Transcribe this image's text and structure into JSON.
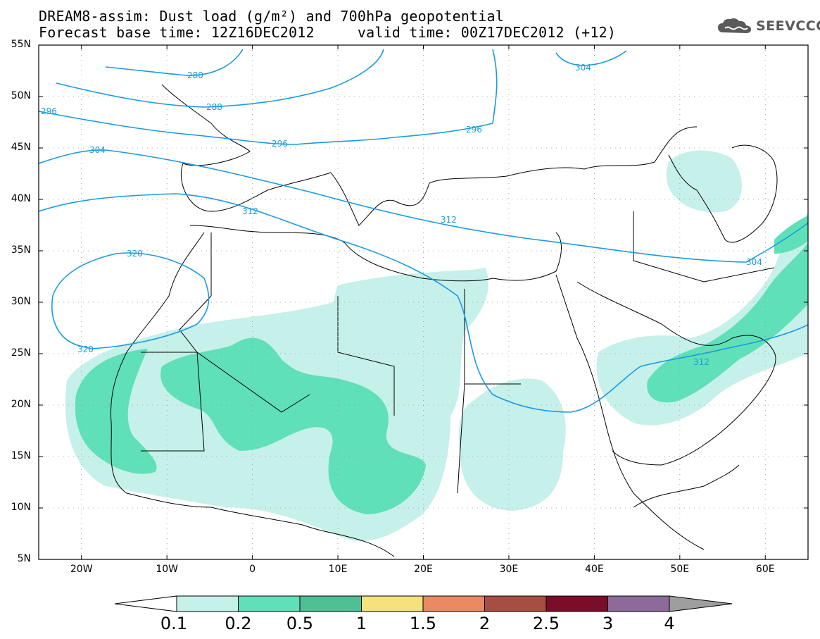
{
  "title": {
    "line1": "DREAM8-assim: Dust load (g/m²) and 700hPa geopotential",
    "line2": "Forecast base time: 12Z16DEC2012     valid time: 00Z17DEC2012 (+12)"
  },
  "logo": {
    "icon": "cloud-icon",
    "text": "SEEVCCC"
  },
  "map": {
    "projection": "lat-lon",
    "lon_range": [
      -25,
      65
    ],
    "lat_range": [
      5,
      55
    ],
    "lat_ticks": [
      "55N",
      "50N",
      "45N",
      "40N",
      "35N",
      "30N",
      "25N",
      "20N",
      "15N",
      "10N",
      "5N"
    ],
    "lon_ticks": [
      "20W",
      "10W",
      "0",
      "10E",
      "20E",
      "30E",
      "40E",
      "50E",
      "60E"
    ],
    "contour_color": "#1a9be0",
    "contour_labels": [
      "280",
      "288",
      "296",
      "296",
      "296",
      "304",
      "304",
      "304",
      "312",
      "312",
      "312",
      "320",
      "320"
    ]
  },
  "colorbar": {
    "labels": [
      "0.1",
      "0.2",
      "0.5",
      "1",
      "1.5",
      "2",
      "2.5",
      "3",
      "4"
    ],
    "colors": [
      "#c6f0ea",
      "#5fe0b8",
      "#4fbf96",
      "#f5e27c",
      "#ea8a62",
      "#a74d42",
      "#7a0d2a",
      "#8c6a9a"
    ],
    "low_end_color": "#ffffff",
    "high_end_color": "#9e9e9e"
  }
}
